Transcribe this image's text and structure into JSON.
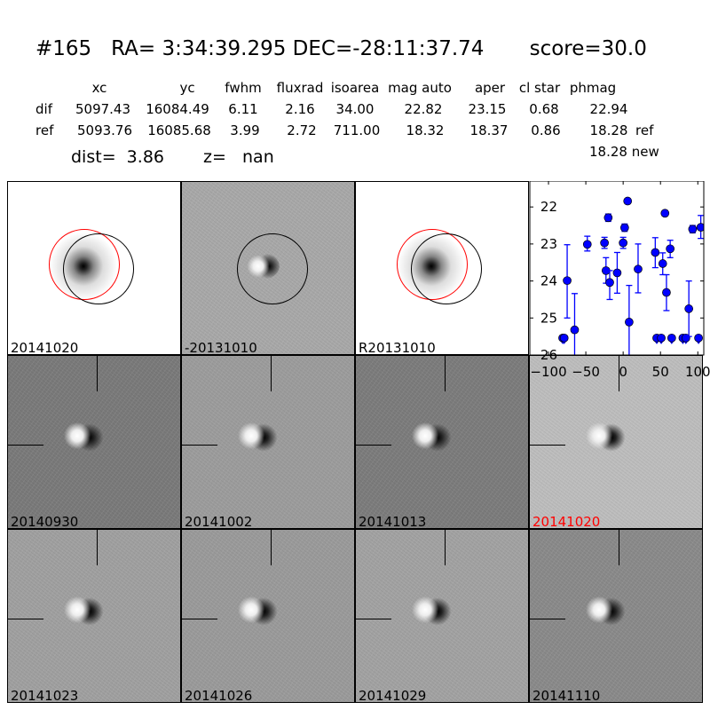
{
  "header": {
    "title": "#165   RA= 3:34:39.295 DEC=-28:11:37.74       score=30.0",
    "columns": [
      "xc",
      "yc",
      "fwhm",
      "fluxrad",
      "isoarea",
      "mag auto",
      "aper",
      "cl star",
      "phmag"
    ],
    "rows": [
      {
        "label": "dif",
        "values": [
          "5097.43",
          "16084.49",
          "6.11",
          "2.16",
          "34.00",
          "22.82",
          "23.15",
          "0.68",
          "22.94"
        ],
        "suffix": ""
      },
      {
        "label": "ref",
        "values": [
          "5093.76",
          "16085.68",
          "3.99",
          "2.72",
          "711.00",
          "18.32",
          "18.37",
          "0.86",
          "18.28"
        ],
        "suffix": "ref"
      }
    ],
    "phmag_new": "18.28 new",
    "dist": "dist=  3.86",
    "z": "z=   nan"
  },
  "panels": [
    {
      "label": "20141020",
      "label_color": "#000000"
    },
    {
      "label": "-20131010",
      "label_color": "#000000"
    },
    {
      "label": "R20131010",
      "label_color": "#000000"
    },
    {
      "label": "20140930",
      "label_color": "#000000"
    },
    {
      "label": "20141002",
      "label_color": "#000000"
    },
    {
      "label": "20141013",
      "label_color": "#000000"
    },
    {
      "label": "20141020",
      "label_color": "#ff0000"
    },
    {
      "label": "20141023",
      "label_color": "#000000"
    },
    {
      "label": "20141026",
      "label_color": "#000000"
    },
    {
      "label": "20141029",
      "label_color": "#000000"
    },
    {
      "label": "20141110",
      "label_color": "#000000"
    }
  ],
  "chart_data": {
    "type": "scatter",
    "title": "",
    "xlabel": "",
    "ylabel": "",
    "xlim": [
      -125,
      108
    ],
    "ylim": [
      26,
      21.3
    ],
    "y_inverted": true,
    "xticks": [
      -100,
      -50,
      0,
      50,
      100
    ],
    "yticks": [
      22,
      23,
      24,
      25,
      26
    ],
    "marker_color": "#0000ff",
    "points": [
      {
        "x": -81,
        "y": 25.54,
        "limit": true
      },
      {
        "x": -79,
        "y": 25.54,
        "limit": true
      },
      {
        "x": -75,
        "y": 23.99,
        "ylo": 23.02,
        "yhi": 25.0
      },
      {
        "x": -65,
        "y": 25.32,
        "ylo": 24.34,
        "yhi": 26.5
      },
      {
        "x": -48,
        "y": 23.01,
        "ylo": 22.79,
        "yhi": 23.19
      },
      {
        "x": -25,
        "y": 22.97,
        "ylo": 22.82,
        "yhi": 23.12
      },
      {
        "x": -23,
        "y": 23.72,
        "ylo": 23.37,
        "yhi": 24.06
      },
      {
        "x": -20,
        "y": 22.29,
        "ylo": 22.19,
        "yhi": 22.39
      },
      {
        "x": -18,
        "y": 24.04,
        "ylo": 23.72,
        "yhi": 24.5
      },
      {
        "x": -8,
        "y": 23.78,
        "ylo": 23.23,
        "yhi": 24.33
      },
      {
        "x": 0,
        "y": 22.97,
        "ylo": 22.82,
        "yhi": 23.12
      },
      {
        "x": 2,
        "y": 22.56,
        "ylo": 22.46,
        "yhi": 22.66
      },
      {
        "x": 6,
        "y": 21.84,
        "ylo": 21.8,
        "yhi": 21.88
      },
      {
        "x": 8,
        "y": 25.11,
        "ylo": 24.12,
        "yhi": 26.5
      },
      {
        "x": 20,
        "y": 23.68,
        "ylo": 23.0,
        "yhi": 24.32
      },
      {
        "x": 43,
        "y": 23.23,
        "ylo": 22.83,
        "yhi": 23.64
      },
      {
        "x": 45,
        "y": 25.54,
        "limit": true
      },
      {
        "x": 51,
        "y": 25.54,
        "limit": true
      },
      {
        "x": 53,
        "y": 23.53,
        "ylo": 23.24,
        "yhi": 23.83
      },
      {
        "x": 56,
        "y": 22.17,
        "ylo": 22.1,
        "yhi": 22.24
      },
      {
        "x": 58,
        "y": 24.31,
        "ylo": 23.83,
        "yhi": 24.8
      },
      {
        "x": 63,
        "y": 23.13,
        "ylo": 22.9,
        "yhi": 23.37
      },
      {
        "x": 65,
        "y": 25.54,
        "limit": true
      },
      {
        "x": 80,
        "y": 25.54,
        "limit": true
      },
      {
        "x": 84,
        "y": 25.54,
        "limit": true
      },
      {
        "x": 88,
        "y": 24.75,
        "ylo": 24.0,
        "yhi": 25.5
      },
      {
        "x": 93,
        "y": 22.6,
        "ylo": 22.5,
        "yhi": 22.7
      },
      {
        "x": 101,
        "y": 25.54,
        "limit": true
      },
      {
        "x": 104,
        "y": 22.55,
        "ylo": 22.23,
        "yhi": 22.85
      }
    ]
  }
}
